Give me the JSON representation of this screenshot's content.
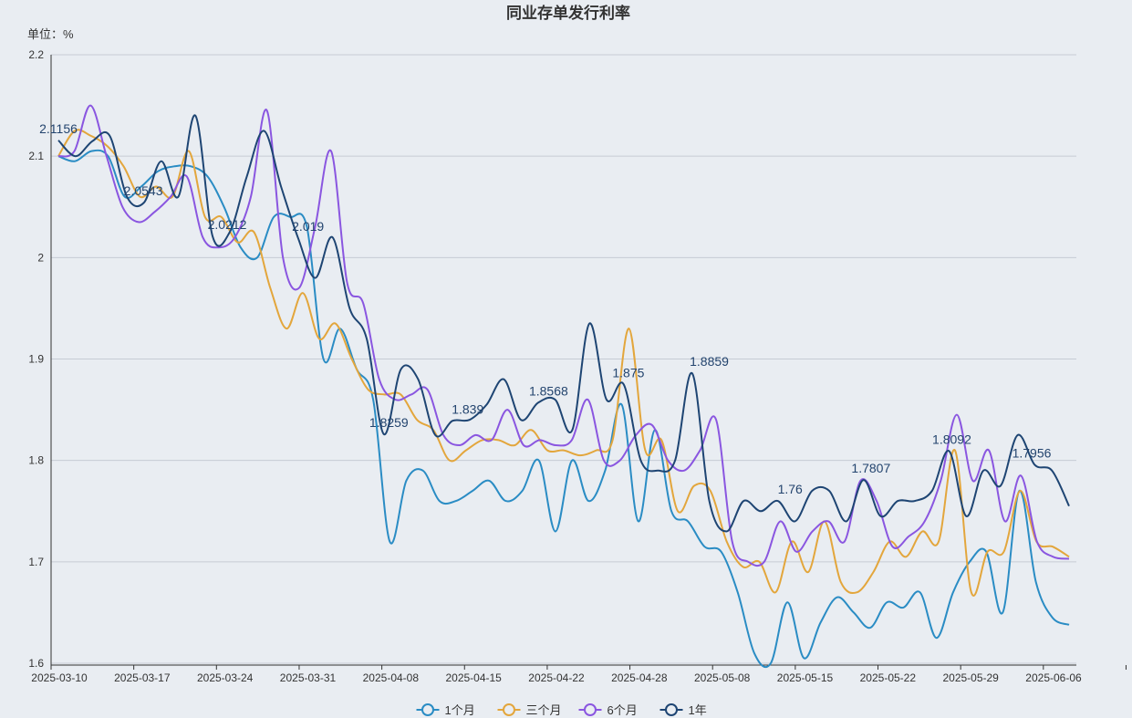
{
  "chart_data": {
    "type": "line",
    "title": "同业存单发行利率",
    "unit_label": "单位：%",
    "ylim": [
      1.6,
      2.2
    ],
    "y_ticks": [
      "1.6",
      "1.7",
      "1.8",
      "1.9",
      "2",
      "2.1",
      "2.2"
    ],
    "x_tick_labels": [
      "2025-03-10",
      "2025-03-17",
      "2025-03-24",
      "2025-03-31",
      "2025-04-08",
      "2025-04-15",
      "2025-04-22",
      "2025-04-28",
      "2025-05-08",
      "2025-05-15",
      "2025-05-22",
      "2025-05-29",
      "2025-06-06"
    ],
    "grid": true,
    "legend_position": "bottom-center",
    "series": [
      {
        "name": "1个月",
        "color": "#2a8cc4",
        "values": [
          2.1,
          2.095,
          2.105,
          2.1,
          2.06,
          2.07,
          2.085,
          2.09,
          2.09,
          2.08,
          2.05,
          2.01,
          2.0,
          2.04,
          2.04,
          2.03,
          1.9,
          1.93,
          1.89,
          1.86,
          1.72,
          1.78,
          1.79,
          1.76,
          1.76,
          1.77,
          1.78,
          1.76,
          1.77,
          1.8,
          1.73,
          1.8,
          1.76,
          1.79,
          1.855,
          1.74,
          1.83,
          1.75,
          1.74,
          1.715,
          1.71,
          1.67,
          1.61,
          1.6,
          1.66,
          1.605,
          1.64,
          1.665,
          1.65,
          1.635,
          1.66,
          1.655,
          1.67,
          1.625,
          1.67,
          1.7,
          1.71,
          1.65,
          1.77,
          1.68,
          1.645,
          1.638
        ]
      },
      {
        "name": "三个月",
        "color": "#e3a63c",
        "values": [
          2.1,
          2.125,
          2.12,
          2.11,
          2.09,
          2.06,
          2.07,
          2.06,
          2.105,
          2.04,
          2.04,
          2.015,
          2.025,
          1.97,
          1.93,
          1.965,
          1.92,
          1.935,
          1.9,
          1.87,
          1.865,
          1.865,
          1.84,
          1.83,
          1.8,
          1.81,
          1.82,
          1.82,
          1.815,
          1.83,
          1.81,
          1.81,
          1.805,
          1.81,
          1.82,
          1.93,
          1.81,
          1.82,
          1.75,
          1.775,
          1.77,
          1.72,
          1.695,
          1.7,
          1.67,
          1.72,
          1.69,
          1.74,
          1.68,
          1.67,
          1.69,
          1.72,
          1.705,
          1.73,
          1.72,
          1.81,
          1.67,
          1.71,
          1.71,
          1.77,
          1.72,
          1.715,
          1.705
        ]
      },
      {
        "name": "6个月",
        "color": "#8a56e0",
        "values": [
          2.1,
          2.105,
          2.15,
          2.1,
          2.05,
          2.035,
          2.045,
          2.06,
          2.08,
          2.02,
          2.01,
          2.02,
          2.06,
          2.145,
          2.0,
          1.97,
          2.03,
          2.105,
          1.975,
          1.955,
          1.88,
          1.86,
          1.865,
          1.87,
          1.825,
          1.815,
          1.825,
          1.82,
          1.85,
          1.815,
          1.82,
          1.815,
          1.82,
          1.86,
          1.8,
          1.8,
          1.825,
          1.835,
          1.8,
          1.79,
          1.81,
          1.84,
          1.72,
          1.7,
          1.7,
          1.74,
          1.71,
          1.73,
          1.74,
          1.72,
          1.78,
          1.76,
          1.715,
          1.725,
          1.74,
          1.78,
          1.845,
          1.78,
          1.81,
          1.74,
          1.785,
          1.72,
          1.705,
          1.703
        ]
      },
      {
        "name": "1年",
        "color": "#1e4573",
        "values": [
          2.1156,
          2.1,
          2.115,
          2.12,
          2.06,
          2.0543,
          2.095,
          2.06,
          2.14,
          2.0212,
          2.025,
          2.08,
          2.125,
          2.07,
          2.019,
          1.98,
          2.02,
          1.95,
          1.92,
          1.8259,
          1.89,
          1.88,
          1.825,
          1.839,
          1.84,
          1.855,
          1.88,
          1.84,
          1.8568,
          1.86,
          1.83,
          1.935,
          1.86,
          1.875,
          1.8,
          1.79,
          1.8,
          1.8859,
          1.76,
          1.73,
          1.76,
          1.75,
          1.76,
          1.74,
          1.77,
          1.77,
          1.74,
          1.7807,
          1.745,
          1.76,
          1.76,
          1.77,
          1.8092,
          1.745,
          1.79,
          1.775,
          1.825,
          1.7956,
          1.79,
          1.755
        ]
      }
    ],
    "annotations": [
      {
        "text": "2.1156",
        "x_frac": 0.0,
        "value": 2.1156
      },
      {
        "text": "2.0543",
        "x_frac": 0.084,
        "value": 2.0543
      },
      {
        "text": "2.0212",
        "x_frac": 0.167,
        "value": 2.0212
      },
      {
        "text": "2.019",
        "x_frac": 0.247,
        "value": 2.019
      },
      {
        "text": "1.8259",
        "x_frac": 0.327,
        "value": 1.8259
      },
      {
        "text": "1.839",
        "x_frac": 0.405,
        "value": 1.839
      },
      {
        "text": "1.8568",
        "x_frac": 0.485,
        "value": 1.8568
      },
      {
        "text": "1.875",
        "x_frac": 0.564,
        "value": 1.875
      },
      {
        "text": "1.8859",
        "x_frac": 0.644,
        "value": 1.8859
      },
      {
        "text": "1.76",
        "x_frac": 0.724,
        "value": 1.76
      },
      {
        "text": "1.7807",
        "x_frac": 0.804,
        "value": 1.7807
      },
      {
        "text": "1.8092",
        "x_frac": 0.884,
        "value": 1.8092
      },
      {
        "text": "1.7956",
        "x_frac": 0.963,
        "value": 1.7956
      }
    ]
  }
}
